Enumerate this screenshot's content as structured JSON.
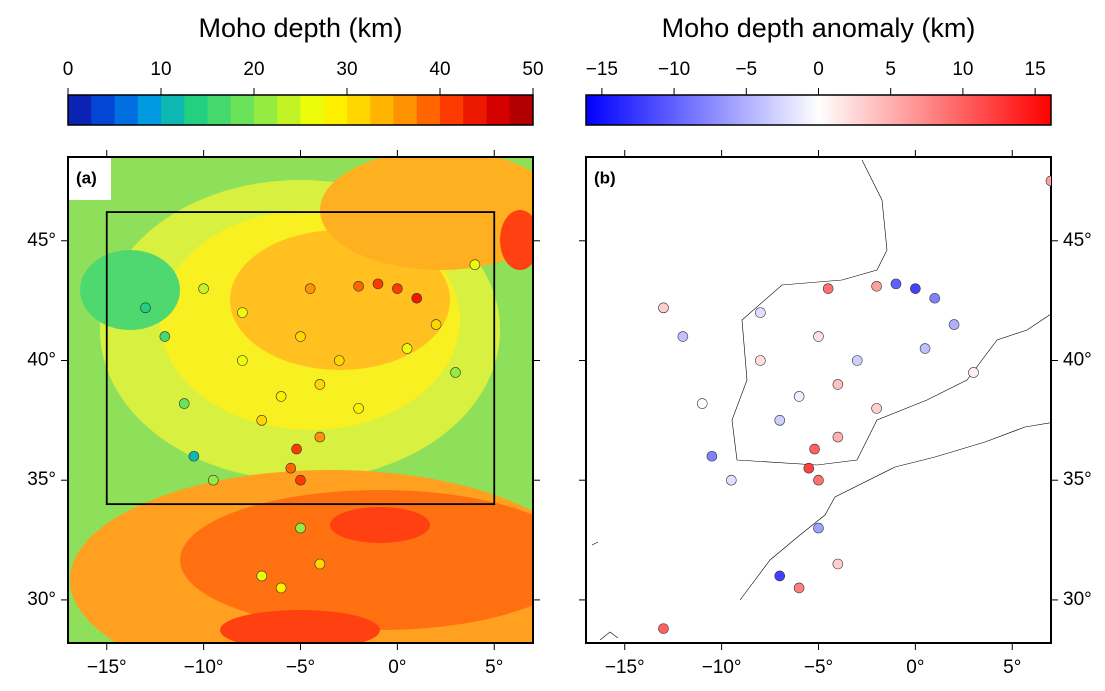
{
  "chart_data": [
    {
      "type": "map",
      "panel_label": "(a)",
      "title": "Moho depth (km)",
      "colorbar": {
        "lim": [
          0,
          50
        ],
        "step": 2.5,
        "ticks": [
          0,
          10,
          20,
          30,
          40,
          50
        ],
        "colors": [
          "#1010a0",
          "#0050e0",
          "#00a0e0",
          "#20d080",
          "#60e060",
          "#b0f030",
          "#ffff00",
          "#ffd000",
          "#ff9000",
          "#ff4000",
          "#e00000",
          "#a00000"
        ]
      },
      "xlim": [
        -17,
        7
      ],
      "ylim": [
        28.2,
        48.5
      ],
      "xticks": [
        {
          "value": -15,
          "label": "−15°"
        },
        {
          "value": -10,
          "label": "−10°"
        },
        {
          "value": -5,
          "label": "−5°"
        },
        {
          "value": 0,
          "label": "0°"
        },
        {
          "value": 5,
          "label": "5°"
        }
      ],
      "yticks": [
        {
          "value": 30,
          "label": "30°"
        },
        {
          "value": 35,
          "label": "35°"
        },
        {
          "value": 40,
          "label": "40°"
        },
        {
          "value": 45,
          "label": "45°"
        }
      ],
      "ytick_side": "left",
      "box": {
        "lon": [
          -15,
          5
        ],
        "lat": [
          34,
          46.2
        ]
      },
      "stations": {
        "lon": [
          -1,
          0,
          1,
          -2,
          -4.5,
          -5,
          -3,
          -4,
          -6,
          -2,
          0.5,
          2,
          3,
          -8,
          -8,
          -7,
          -5.2,
          -5.5,
          -5,
          -4,
          -13,
          -12,
          -11,
          -10.5,
          -9.5,
          -7,
          -6,
          -4,
          -5,
          -10,
          4
        ],
        "lat": [
          43.2,
          43,
          42.6,
          43.1,
          43,
          41,
          40,
          39,
          38.5,
          38,
          40.5,
          41.5,
          39.5,
          42,
          40,
          37.5,
          36.3,
          35.5,
          35,
          36.8,
          42.2,
          41,
          38.2,
          36,
          35,
          31,
          30.5,
          31.5,
          33,
          43,
          44
        ],
        "values": [
          40,
          42,
          44,
          38,
          35,
          32,
          31,
          30,
          29,
          28,
          27,
          30,
          20,
          27,
          26,
          30,
          40,
          38,
          41,
          35,
          14,
          15,
          18,
          12,
          20,
          25,
          28,
          30,
          22,
          24,
          26
        ]
      }
    },
    {
      "type": "map",
      "panel_label": "(b)",
      "title": "Moho depth anomaly (km)",
      "colorbar": {
        "lim": [
          -16.1,
          16.1
        ],
        "ticks": [
          {
            "value": -15,
            "label": "−15"
          },
          {
            "value": -10,
            "label": "−10"
          },
          {
            "value": -5,
            "label": "−5"
          },
          0,
          5,
          10,
          15
        ],
        "colors": [
          "#0000ff",
          "#ffffff",
          "#ff0000"
        ]
      },
      "xlim": [
        -17,
        7
      ],
      "ylim": [
        28.2,
        48.5
      ],
      "xticks": [
        {
          "value": -15,
          "label": "−15°"
        },
        {
          "value": -10,
          "label": "−10°"
        },
        {
          "value": -5,
          "label": "−5°"
        },
        {
          "value": 0,
          "label": "0°"
        },
        {
          "value": 5,
          "label": "5°"
        }
      ],
      "yticks": [
        {
          "value": 30,
          "label": "30°"
        },
        {
          "value": 35,
          "label": "35°"
        },
        {
          "value": 40,
          "label": "40°"
        },
        {
          "value": 45,
          "label": "45°"
        }
      ],
      "ytick_side": "right",
      "stations": {
        "lon": [
          -1,
          0,
          1,
          -2,
          -4.5,
          -5,
          -3,
          -4,
          -6,
          -2,
          0.5,
          2,
          3,
          -8,
          -8,
          -7,
          -5.2,
          -5.5,
          -5,
          -4,
          -13,
          -12,
          -11,
          -10.5,
          -9.5,
          -7,
          -6,
          -4,
          -5,
          -13,
          7
        ],
        "lat": [
          43.2,
          43,
          42.6,
          43.1,
          43,
          41,
          40,
          39,
          38.5,
          38,
          40.5,
          41.5,
          39.5,
          42,
          40,
          37.5,
          36.3,
          35.5,
          35,
          36.8,
          42.2,
          41,
          38.2,
          36,
          35,
          31,
          30.5,
          31.5,
          33,
          28.8,
          47.5
        ],
        "values": [
          -10,
          -12,
          -8,
          6,
          9,
          2,
          -3,
          4,
          -1,
          3,
          -4,
          -5,
          1,
          -2,
          2,
          -3,
          10,
          12,
          9,
          5,
          3,
          -4,
          0,
          -8,
          -2,
          -12,
          8,
          3,
          -6,
          10,
          6
        ]
      }
    }
  ]
}
